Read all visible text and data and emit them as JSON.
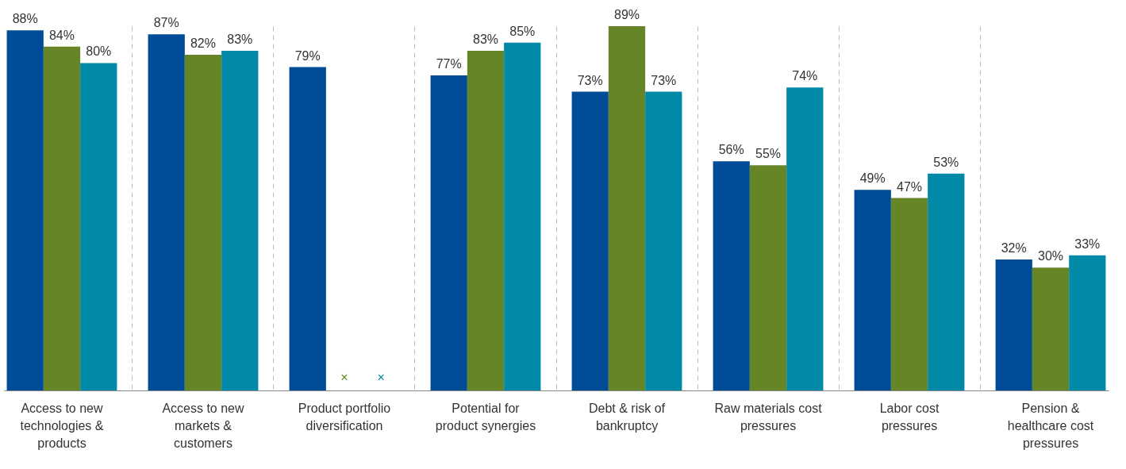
{
  "chart_data": {
    "type": "bar",
    "categories": [
      "Access to new technologies & products",
      "Access to new markets & customers",
      "Product portfolio diversification",
      "Potential for product synergies",
      "Debt & risk of bankruptcy",
      "Raw materials cost pressures",
      "Labor cost pressures",
      "Pension & healthcare cost pressures"
    ],
    "series": [
      {
        "color": "#004c97",
        "values": [
          88,
          87,
          79,
          77,
          73,
          56,
          49,
          32
        ],
        "value_labels": [
          "88%",
          "87%",
          "79%",
          "77%",
          "73%",
          "56%",
          "49%",
          "32%"
        ]
      },
      {
        "color": "#658527",
        "values": [
          84,
          82,
          null,
          83,
          89,
          55,
          47,
          30
        ],
        "value_labels": [
          "84%",
          "82%",
          null,
          "83%",
          "89%",
          "55%",
          "47%",
          "30%"
        ]
      },
      {
        "color": "#008aa8",
        "values": [
          80,
          83,
          null,
          85,
          73,
          74,
          53,
          33
        ],
        "value_labels": [
          "80%",
          "83%",
          null,
          "85%",
          "73%",
          "74%",
          "53%",
          "33%"
        ]
      }
    ],
    "annotations": [
      "×",
      "×"
    ],
    "grid": "x"
  }
}
